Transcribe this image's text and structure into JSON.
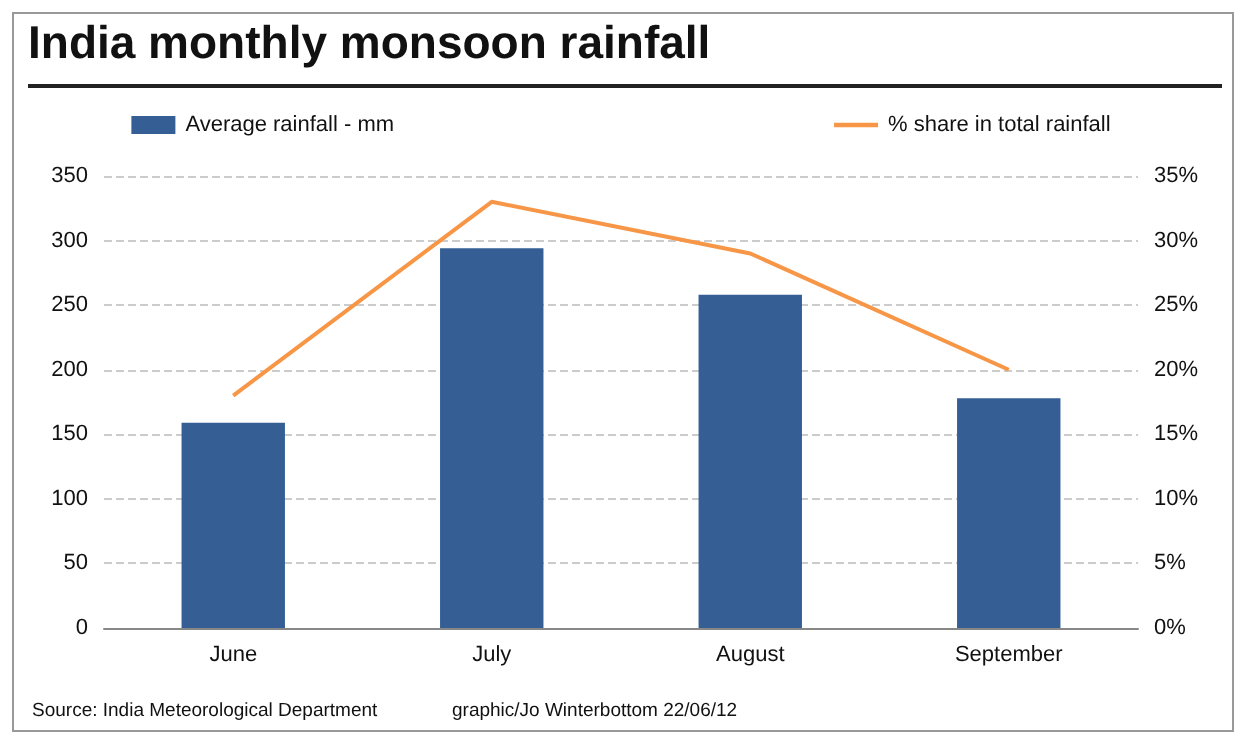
{
  "chart_data": {
    "type": "bar",
    "title": "India monthly monsoon rainfall",
    "categories": [
      "June",
      "July",
      "August",
      "September"
    ],
    "series": [
      {
        "name": "Average rainfall - mm",
        "color": "#355e95",
        "values": [
          159,
          294,
          258,
          178
        ]
      },
      {
        "name": "% share in total rainfall",
        "type": "line",
        "axis": "y2",
        "color": "#f79646",
        "values": [
          18,
          33,
          29,
          20
        ]
      }
    ],
    "ylim": [
      0,
      350
    ],
    "yticks": [
      0,
      50,
      100,
      150,
      200,
      250,
      300,
      350
    ],
    "y2lim": [
      0,
      35
    ],
    "y2ticks": [
      {
        "value": 0,
        "label": "0%"
      },
      {
        "value": 5,
        "label": "5%"
      },
      {
        "value": 10,
        "label": "10%"
      },
      {
        "value": 15,
        "label": "15%"
      },
      {
        "value": 20,
        "label": "20%"
      },
      {
        "value": 25,
        "label": "25%"
      },
      {
        "value": 30,
        "label": "30%"
      },
      {
        "value": 35,
        "label": "35%"
      }
    ],
    "grid": "y",
    "legend": "top",
    "marker": "none",
    "line_style": "solid",
    "annotations": [
      "Source: India Meteorological Department",
      "graphic/Jo Winterbottom 22/06/12"
    ]
  }
}
